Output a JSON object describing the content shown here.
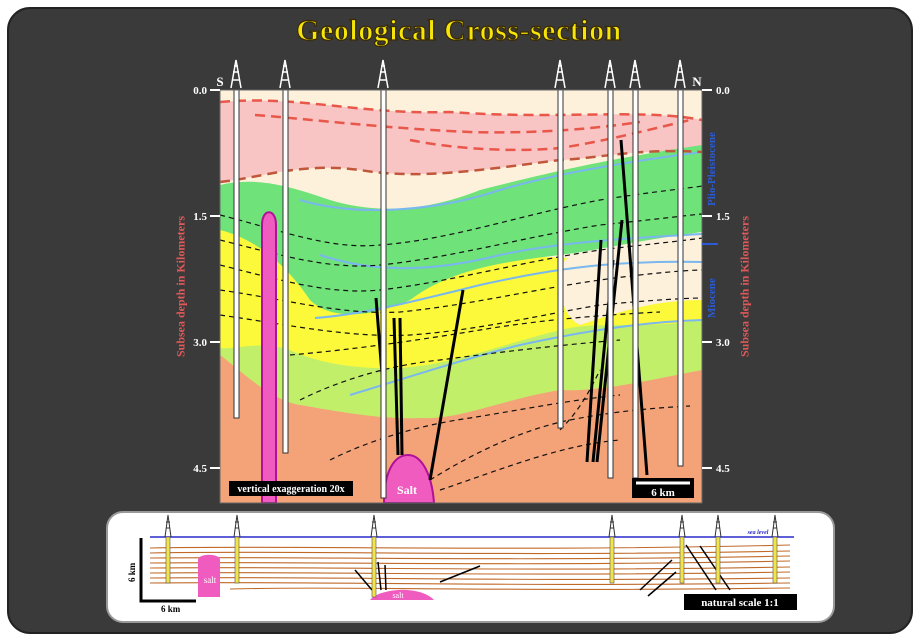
{
  "title": "Geological Cross-section",
  "compass": {
    "left": "S",
    "right": "N"
  },
  "depth_axis": {
    "label": "Subsea depth in Kilometers",
    "ticks": [
      "0.0",
      "1.5",
      "3.0",
      "4.5"
    ]
  },
  "epochs": {
    "upper": "Plio-Pleistocene",
    "lower": "Miocene"
  },
  "main_section": {
    "exaggeration_label": "vertical exaggeration 20x",
    "scale_label": "6 km",
    "salt_label": "Salt"
  },
  "inset_section": {
    "sea_level_label": "sea level",
    "vertical_scale_label": "6 km",
    "horizontal_scale_label": "6 km",
    "salt_label_left": "salt",
    "salt_label_center": "salt",
    "natural_scale_label": "natural scale 1:1"
  },
  "colors": {
    "background": "#3a3a3a",
    "title": "#f5e50a",
    "salt": "#f05bc0",
    "pink_layer": "#f8c4c4",
    "cream_layer": "#fdf1dc",
    "green_layer": "#6fe27a",
    "yellow_layer": "#fbf93a",
    "light_green_layer": "#c2ef6a",
    "orange_layer": "#f4a277",
    "epoch_text": "#2a5bd7",
    "depth_label": "#e0595a"
  }
}
